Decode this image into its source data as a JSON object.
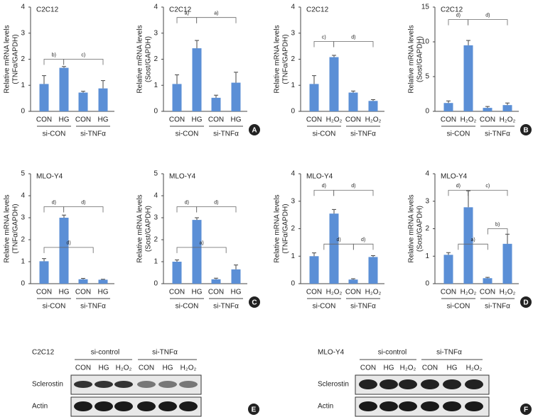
{
  "chart_data": [
    {
      "type": "bar",
      "title": "C2C12",
      "ylabel": [
        "Relative mRNA levels",
        "(TNFα/GAPDH)"
      ],
      "categories": [
        "CON",
        "HG",
        "CON",
        "HG"
      ],
      "groups": [
        "si-CON",
        "si-TNFα"
      ],
      "values": [
        1.05,
        1.67,
        0.72,
        0.88
      ],
      "errors": [
        0.32,
        0.05,
        0.05,
        0.3
      ],
      "color": "#5b8fd6",
      "ylim": [
        0,
        4
      ],
      "yticks": [
        0,
        1,
        2,
        3,
        4
      ],
      "annotations": [
        "b)",
        "c)"
      ]
    },
    {
      "type": "bar",
      "title": "C2C12",
      "ylabel": [
        "Relative mRNA levels",
        "(Sost/GAPDH)"
      ],
      "categories": [
        "CON",
        "HG",
        "CON",
        "HG"
      ],
      "groups": [
        "si-CON",
        "si-TNFα"
      ],
      "values": [
        1.05,
        2.42,
        0.52,
        1.1
      ],
      "errors": [
        0.35,
        0.3,
        0.1,
        0.4
      ],
      "color": "#5b8fd6",
      "ylim": [
        0,
        4
      ],
      "yticks": [
        0,
        1,
        2,
        3,
        4
      ],
      "annotations": [
        "a)",
        "a)"
      ],
      "panel": "A"
    },
    {
      "type": "bar",
      "title": "C2C12",
      "ylabel": [
        "Relative mRNA levels",
        "(TNFα/GAPDH)"
      ],
      "categories": [
        "CON",
        "H₂O₂",
        "CON",
        "H₂O₂"
      ],
      "groups": [
        "si-CON",
        "si-TNFα"
      ],
      "values": [
        1.05,
        2.08,
        0.72,
        0.4
      ],
      "errors": [
        0.32,
        0.07,
        0.06,
        0.05
      ],
      "color": "#5b8fd6",
      "ylim": [
        0,
        4
      ],
      "yticks": [
        0,
        1,
        2,
        3,
        4
      ],
      "annotations": [
        "c)",
        "d)"
      ]
    },
    {
      "type": "bar",
      "title": "C2C12",
      "ylabel": [
        "Relative mRNA levels",
        "(Sost/GAPDH)"
      ],
      "categories": [
        "CON",
        "H₂O₂",
        "CON",
        "H₂O₂"
      ],
      "groups": [
        "si-CON",
        "si-TNFα"
      ],
      "values": [
        1.2,
        9.5,
        0.5,
        0.9
      ],
      "errors": [
        0.3,
        0.7,
        0.2,
        0.3
      ],
      "color": "#5b8fd6",
      "ylim": [
        0,
        15
      ],
      "yticks": [
        0,
        5,
        10,
        15
      ],
      "annotations": [
        "d)",
        "d)"
      ],
      "panel": "B"
    },
    {
      "type": "bar",
      "title": "MLO-Y4",
      "ylabel": [
        "Relative mRNA levels",
        "(TNFα/GAPDH)"
      ],
      "categories": [
        "CON",
        "HG",
        "CON",
        "HG"
      ],
      "groups": [
        "si-CON",
        "si-TNFα"
      ],
      "values": [
        1.02,
        3.0,
        0.2,
        0.18
      ],
      "errors": [
        0.12,
        0.12,
        0.04,
        0.02
      ],
      "color": "#5b8fd6",
      "ylim": [
        0,
        5
      ],
      "yticks": [
        0,
        1,
        2,
        3,
        4,
        5
      ],
      "annotations": [
        "d)",
        "d)",
        "d)"
      ]
    },
    {
      "type": "bar",
      "title": "MLO-Y4",
      "ylabel": [
        "Relative mRNA levels",
        "(Sost/GAPDH)"
      ],
      "categories": [
        "CON",
        "HG",
        "CON",
        "HG"
      ],
      "groups": [
        "si-CON",
        "si-TNFα"
      ],
      "values": [
        1.0,
        2.9,
        0.2,
        0.65
      ],
      "errors": [
        0.08,
        0.1,
        0.05,
        0.2
      ],
      "color": "#5b8fd6",
      "ylim": [
        0,
        5
      ],
      "yticks": [
        0,
        1,
        2,
        3,
        4,
        5
      ],
      "annotations": [
        "d)",
        "d)",
        "a)"
      ],
      "panel": "C"
    },
    {
      "type": "bar",
      "title": "MLO-Y4",
      "ylabel": [
        "Relative mRNA levels",
        "(TNFα/GAPDH)"
      ],
      "categories": [
        "CON",
        "H₂O₂",
        "CON",
        "H₂O₂"
      ],
      "groups": [
        "si-CON",
        "si-TNFα"
      ],
      "values": [
        1.0,
        2.55,
        0.15,
        0.97
      ],
      "errors": [
        0.12,
        0.15,
        0.03,
        0.05
      ],
      "color": "#5b8fd6",
      "ylim": [
        0,
        4
      ],
      "yticks": [
        0,
        1,
        2,
        3,
        4
      ],
      "annotations": [
        "d)",
        "d)",
        "d)",
        "d)"
      ]
    },
    {
      "type": "bar",
      "title": "MLO-Y4",
      "ylabel": [
        "Relative mRNA levels",
        "(Sost/GAPDH)"
      ],
      "categories": [
        "CON",
        "H₂O₂",
        "CON",
        "H₂O₂"
      ],
      "groups": [
        "si-CON",
        "si-TNFα"
      ],
      "values": [
        1.05,
        2.78,
        0.2,
        1.45
      ],
      "errors": [
        0.08,
        0.6,
        0.03,
        0.35
      ],
      "color": "#5b8fd6",
      "ylim": [
        0,
        4
      ],
      "yticks": [
        0,
        1,
        2,
        3,
        4
      ],
      "annotations": [
        "d)",
        "c)",
        "a)",
        "b)"
      ],
      "panel": "D"
    }
  ],
  "blots": [
    {
      "title": "C2C12",
      "groups": [
        "si-control",
        "si-TNFα"
      ],
      "lanes": [
        "CON",
        "HG",
        "H₂O₂",
        "CON",
        "HG",
        "H₂O₂"
      ],
      "rows": [
        "Sclerostin",
        "Actin"
      ],
      "panel": "E"
    },
    {
      "title": "MLO-Y4",
      "groups": [
        "si-control",
        "si-TNFα"
      ],
      "lanes": [
        "CON",
        "HG",
        "H₂O₂",
        "CON",
        "HG",
        "H₂O₂"
      ],
      "rows": [
        "Sclerostin",
        "Actin"
      ],
      "panel": "F"
    }
  ]
}
